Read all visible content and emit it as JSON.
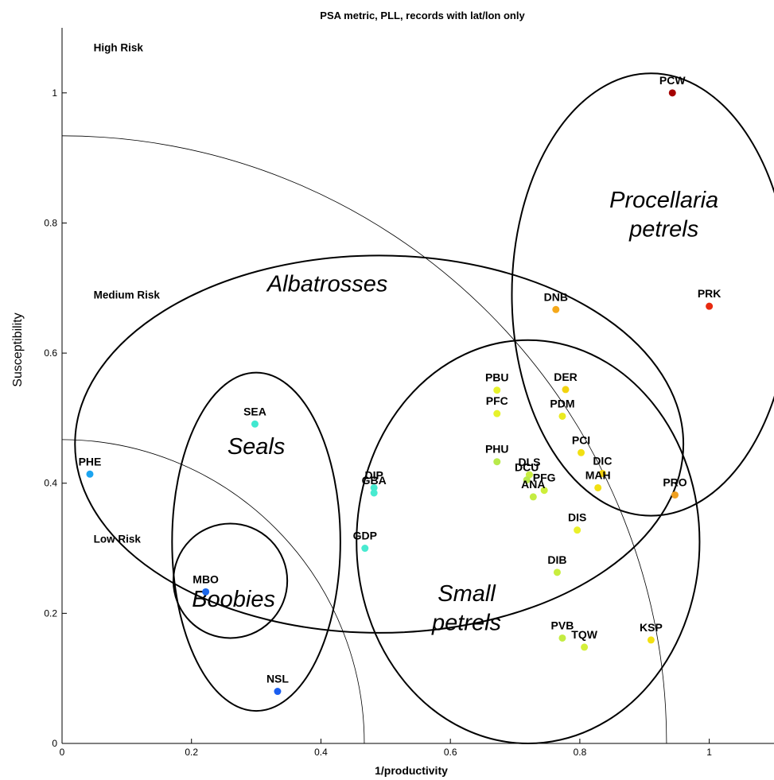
{
  "chart_data": {
    "type": "scatter",
    "title": "PSA metric, PLL, records with lat/lon only",
    "xlabel": "1/productivity",
    "ylabel": "Susceptibility",
    "xlim": [
      0,
      1.1
    ],
    "ylim": [
      0,
      1.1
    ],
    "xticks": [
      0,
      0.2,
      0.4,
      0.6,
      0.8,
      1
    ],
    "yticks": [
      0,
      0.2,
      0.4,
      0.6,
      0.8,
      1
    ],
    "xtick_labels": [
      "0",
      "0.2",
      "0.4",
      "0.6",
      "0.8",
      "1"
    ],
    "ytick_labels": [
      "0",
      "0.2",
      "0.4",
      "0.6",
      "0.8",
      "1"
    ],
    "grid": false,
    "risk_regions": [
      {
        "label": "High Risk",
        "x": 0.05,
        "y": 1.07
      },
      {
        "label": "Medium Risk",
        "x": 0.05,
        "y": 0.69
      },
      {
        "label": "Low Risk",
        "x": 0.05,
        "y": 0.315
      }
    ],
    "risk_boundaries": [
      {
        "center": [
          0,
          0
        ],
        "radius": 0.467
      },
      {
        "center": [
          0,
          0
        ],
        "radius": 0.934
      }
    ],
    "groups": [
      {
        "label": "Albatrosses",
        "center": [
          0.49,
          0.46
        ],
        "radii": [
          0.47,
          0.29
        ],
        "label_at": [
          0.41,
          0.695
        ]
      },
      {
        "label": "Procellaria petrels",
        "center": [
          0.91,
          0.69
        ],
        "radii": [
          0.215,
          0.34
        ],
        "label_at": [
          0.93,
          0.82
        ]
      },
      {
        "label": "Small petrels",
        "center": [
          0.72,
          0.31
        ],
        "radii": [
          0.265,
          0.31
        ],
        "label_at": [
          0.625,
          0.215
        ]
      },
      {
        "label": "Seals",
        "center": [
          0.3,
          0.31
        ],
        "radii": [
          0.13,
          0.26
        ],
        "label_at": [
          0.3,
          0.445
        ]
      },
      {
        "label": "Boobies",
        "center": [
          0.26,
          0.25
        ],
        "radii": [
          0.088,
          0.088
        ],
        "label_at": [
          0.265,
          0.21
        ]
      }
    ],
    "points": [
      {
        "label": "PCW",
        "x": 0.943,
        "y": 1.0,
        "color": "#a50000"
      },
      {
        "label": "PRK",
        "x": 1.0,
        "y": 0.672,
        "color": "#e82a10"
      },
      {
        "label": "DNB",
        "x": 0.763,
        "y": 0.667,
        "color": "#f5a81a"
      },
      {
        "label": "PRO",
        "x": 0.947,
        "y": 0.382,
        "color": "#f0a020"
      },
      {
        "label": "DER",
        "x": 0.778,
        "y": 0.544,
        "color": "#f2d30e"
      },
      {
        "label": "PBU",
        "x": 0.672,
        "y": 0.543,
        "color": "#e6f22a"
      },
      {
        "label": "PFC",
        "x": 0.672,
        "y": 0.507,
        "color": "#e6f22a"
      },
      {
        "label": "PDM",
        "x": 0.773,
        "y": 0.503,
        "color": "#eaea20"
      },
      {
        "label": "PCI",
        "x": 0.802,
        "y": 0.447,
        "color": "#f2e012"
      },
      {
        "label": "DIC",
        "x": 0.835,
        "y": 0.415,
        "color": "#f2d20e"
      },
      {
        "label": "MAH",
        "x": 0.828,
        "y": 0.393,
        "color": "#f2e012"
      },
      {
        "label": "PHU",
        "x": 0.672,
        "y": 0.433,
        "color": "#b8ea4a"
      },
      {
        "label": "DLS",
        "x": 0.722,
        "y": 0.413,
        "color": "#c9ee40"
      },
      {
        "label": "DCU",
        "x": 0.718,
        "y": 0.405,
        "color": "#b8ea4a"
      },
      {
        "label": "PFG",
        "x": 0.745,
        "y": 0.389,
        "color": "#cdee3a"
      },
      {
        "label": "ANA",
        "x": 0.728,
        "y": 0.379,
        "color": "#c4ec42"
      },
      {
        "label": "DIS",
        "x": 0.796,
        "y": 0.328,
        "color": "#eaf02a"
      },
      {
        "label": "DIB",
        "x": 0.765,
        "y": 0.263,
        "color": "#c8ee3e"
      },
      {
        "label": "PVB",
        "x": 0.773,
        "y": 0.162,
        "color": "#c4ec42"
      },
      {
        "label": "TQW",
        "x": 0.807,
        "y": 0.148,
        "color": "#d4f03a"
      },
      {
        "label": "KSP",
        "x": 0.91,
        "y": 0.159,
        "color": "#f2e012"
      },
      {
        "label": "DIP",
        "x": 0.482,
        "y": 0.393,
        "color": "#48ead0"
      },
      {
        "label": "GBA",
        "x": 0.482,
        "y": 0.385,
        "color": "#48ead0"
      },
      {
        "label": "GDP",
        "x": 0.468,
        "y": 0.3,
        "color": "#48ead0"
      },
      {
        "label": "SEA",
        "x": 0.298,
        "y": 0.491,
        "color": "#40e8d0"
      },
      {
        "label": "PHE",
        "x": 0.043,
        "y": 0.414,
        "color": "#1ca4f0"
      },
      {
        "label": "MBO",
        "x": 0.222,
        "y": 0.233,
        "color": "#1a66ea"
      },
      {
        "label": "NSL",
        "x": 0.333,
        "y": 0.08,
        "color": "#1a5ef0"
      }
    ]
  }
}
